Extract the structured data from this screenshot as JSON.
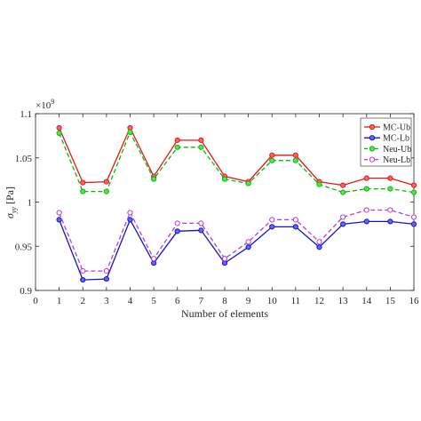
{
  "chart_data": {
    "type": "line",
    "xlabel": "Number of elements",
    "ylabel": "σ_yy [Pa]",
    "ylabel_main": "σ",
    "ylabel_sub": "yy",
    "ylabel_unit": " [Pa]",
    "y_multiplier_base": "×10",
    "y_multiplier_exp": "9",
    "xlim": [
      0,
      16
    ],
    "ylim": [
      0.9,
      1.1
    ],
    "x_ticks": [
      0,
      1,
      2,
      3,
      4,
      5,
      6,
      7,
      8,
      9,
      10,
      11,
      12,
      13,
      14,
      15,
      16
    ],
    "y_ticks": [
      0.9,
      0.95,
      1,
      1.05,
      1.1
    ],
    "y_tick_labels": [
      "0.9",
      "0.95",
      "1",
      "1.05",
      "1.1"
    ],
    "grid": false,
    "legend_position": "top-right",
    "x": [
      1,
      2,
      3,
      4,
      5,
      6,
      7,
      8,
      9,
      10,
      11,
      12,
      13,
      14,
      15,
      16
    ],
    "series": [
      {
        "name": "MC-Ub",
        "color": "#e0161b",
        "line_style": "solid",
        "marker_fill": "#ff6464",
        "values": [
          1.084,
          1.022,
          1.023,
          1.084,
          1.029,
          1.07,
          1.07,
          1.029,
          1.023,
          1.053,
          1.053,
          1.023,
          1.019,
          1.027,
          1.027,
          1.019
        ]
      },
      {
        "name": "MC-Lb",
        "color": "#1414c8",
        "line_style": "solid",
        "marker_fill": "#6464ff",
        "values": [
          0.98,
          0.912,
          0.913,
          0.98,
          0.931,
          0.967,
          0.968,
          0.931,
          0.949,
          0.972,
          0.972,
          0.949,
          0.975,
          0.978,
          0.978,
          0.975
        ]
      },
      {
        "name": "Neu-Ub",
        "color": "#0fb40f",
        "line_style": "dashed",
        "marker_fill": "#50e650",
        "values": [
          1.078,
          1.012,
          1.012,
          1.079,
          1.026,
          1.062,
          1.062,
          1.026,
          1.021,
          1.047,
          1.047,
          1.02,
          1.011,
          1.015,
          1.015,
          1.011
        ]
      },
      {
        "name": "Neu-Lb",
        "color": "#b53cd6",
        "line_style": "dashed",
        "marker_fill": "#ffffff",
        "values": [
          0.988,
          0.922,
          0.922,
          0.988,
          0.936,
          0.976,
          0.976,
          0.936,
          0.955,
          0.98,
          0.98,
          0.955,
          0.983,
          0.991,
          0.991,
          0.983
        ]
      }
    ]
  }
}
